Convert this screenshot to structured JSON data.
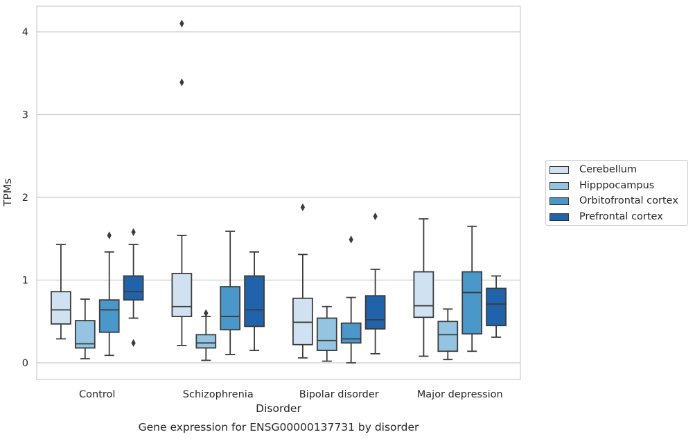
{
  "chart_data": {
    "type": "box",
    "title": "Gene expression for ENSG00000137731 by disorder",
    "xlabel": "Disorder",
    "ylabel": "TPMs",
    "ylim": [
      -0.2,
      4.3
    ],
    "yticks": [
      0,
      1,
      2,
      3,
      4
    ],
    "grid": "horizontal",
    "legend_position": "right",
    "categories": [
      "Control",
      "Schizophrenia",
      "Bipolar disorder",
      "Major depression"
    ],
    "series": [
      {
        "name": "Cerebellum",
        "color": "#d0e1f2",
        "boxes": [
          {
            "whislo": 0.29,
            "q1": 0.47,
            "med": 0.64,
            "q3": 0.86,
            "whishi": 1.43,
            "fliers": []
          },
          {
            "whislo": 0.21,
            "q1": 0.56,
            "med": 0.68,
            "q3": 1.08,
            "whishi": 1.54,
            "fliers": [
              3.39,
              4.1
            ]
          },
          {
            "whislo": 0.06,
            "q1": 0.22,
            "med": 0.49,
            "q3": 0.78,
            "whishi": 1.31,
            "fliers": [
              1.88
            ]
          },
          {
            "whislo": 0.08,
            "q1": 0.55,
            "med": 0.69,
            "q3": 1.1,
            "whishi": 1.74,
            "fliers": []
          }
        ]
      },
      {
        "name": "Hipppocampus",
        "color": "#94c4df",
        "boxes": [
          {
            "whislo": 0.05,
            "q1": 0.18,
            "med": 0.23,
            "q3": 0.51,
            "whishi": 0.77,
            "fliers": []
          },
          {
            "whislo": 0.03,
            "q1": 0.18,
            "med": 0.24,
            "q3": 0.34,
            "whishi": 0.56,
            "fliers": [
              0.6
            ]
          },
          {
            "whislo": 0.02,
            "q1": 0.15,
            "med": 0.27,
            "q3": 0.54,
            "whishi": 0.68,
            "fliers": []
          },
          {
            "whislo": 0.04,
            "q1": 0.14,
            "med": 0.34,
            "q3": 0.5,
            "whishi": 0.65,
            "fliers": []
          }
        ]
      },
      {
        "name": "Orbitofrontal cortex",
        "color": "#4a98c9",
        "boxes": [
          {
            "whislo": 0.09,
            "q1": 0.37,
            "med": 0.64,
            "q3": 0.76,
            "whishi": 1.34,
            "fliers": [
              1.54
            ]
          },
          {
            "whislo": 0.1,
            "q1": 0.4,
            "med": 0.56,
            "q3": 0.92,
            "whishi": 1.59,
            "fliers": []
          },
          {
            "whislo": 0.0,
            "q1": 0.24,
            "med": 0.29,
            "q3": 0.48,
            "whishi": 0.79,
            "fliers": [
              1.49
            ]
          },
          {
            "whislo": 0.14,
            "q1": 0.35,
            "med": 0.85,
            "q3": 1.1,
            "whishi": 1.65,
            "fliers": []
          }
        ]
      },
      {
        "name": "Prefrontal cortex",
        "color": "#2163aa",
        "boxes": [
          {
            "whislo": 0.54,
            "q1": 0.76,
            "med": 0.86,
            "q3": 1.05,
            "whishi": 1.43,
            "fliers": [
              0.24,
              1.58
            ]
          },
          {
            "whislo": 0.15,
            "q1": 0.44,
            "med": 0.64,
            "q3": 1.05,
            "whishi": 1.34,
            "fliers": []
          },
          {
            "whislo": 0.11,
            "q1": 0.41,
            "med": 0.52,
            "q3": 0.81,
            "whishi": 1.13,
            "fliers": [
              1.77
            ]
          },
          {
            "whislo": 0.31,
            "q1": 0.45,
            "med": 0.71,
            "q3": 0.9,
            "whishi": 1.05,
            "fliers": []
          }
        ]
      }
    ]
  }
}
